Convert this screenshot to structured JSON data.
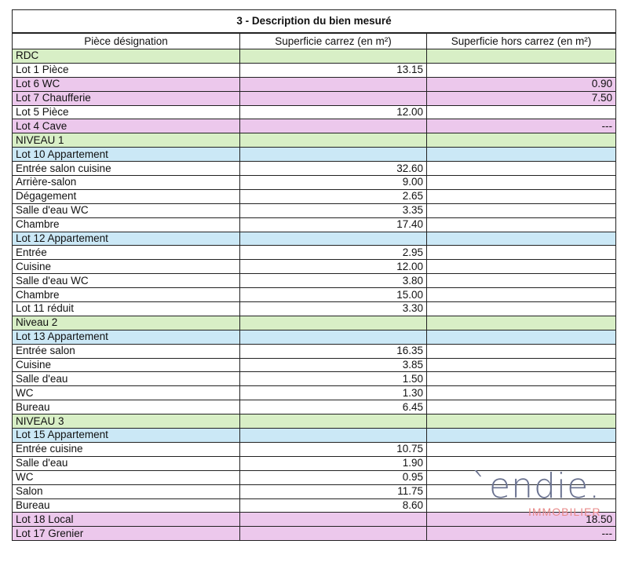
{
  "title": "3 -  Description du bien mesuré",
  "headers": [
    "Pièce désignation",
    "Superficie carrez (en m²)",
    "Superficie hors carrez (en m²)"
  ],
  "colors": {
    "level": "#d8efc6",
    "lot_blue": "#cbe8f6",
    "lot_pink": "#ecc8ec"
  },
  "rows": [
    {
      "type": "level",
      "label": "RDC",
      "carrez": "",
      "hors": ""
    },
    {
      "type": "room",
      "label": "Lot 1 Pièce",
      "carrez": "13.15",
      "hors": ""
    },
    {
      "type": "lotpink",
      "label": "Lot 6 WC",
      "carrez": "",
      "hors": "0.90"
    },
    {
      "type": "lotpink",
      "label": "Lot 7 Chaufferie",
      "carrez": "",
      "hors": "7.50"
    },
    {
      "type": "room",
      "label": "Lot 5 Pièce",
      "carrez": "12.00",
      "hors": ""
    },
    {
      "type": "lotpink",
      "label": "Lot 4 Cave",
      "carrez": "",
      "hors": "---"
    },
    {
      "type": "level",
      "label": "NIVEAU 1",
      "carrez": "",
      "hors": ""
    },
    {
      "type": "lotblue",
      "label": "Lot 10 Appartement",
      "carrez": "",
      "hors": ""
    },
    {
      "type": "room",
      "label": "Entrée salon cuisine",
      "carrez": "32.60",
      "hors": ""
    },
    {
      "type": "room",
      "label": "Arrière-salon",
      "carrez": "9.00",
      "hors": ""
    },
    {
      "type": "room",
      "label": "Dégagement",
      "carrez": "2.65",
      "hors": ""
    },
    {
      "type": "room",
      "label": "Salle d'eau WC",
      "carrez": "3.35",
      "hors": ""
    },
    {
      "type": "room",
      "label": "Chambre",
      "carrez": "17.40",
      "hors": ""
    },
    {
      "type": "lotblue",
      "label": "Lot 12 Appartement",
      "carrez": "",
      "hors": ""
    },
    {
      "type": "room",
      "label": "Entrée",
      "carrez": "2.95",
      "hors": ""
    },
    {
      "type": "room",
      "label": "Cuisine",
      "carrez": "12.00",
      "hors": ""
    },
    {
      "type": "room",
      "label": "Salle d'eau WC",
      "carrez": "3.80",
      "hors": ""
    },
    {
      "type": "room",
      "label": "Chambre",
      "carrez": "15.00",
      "hors": ""
    },
    {
      "type": "room",
      "label": "Lot 11 réduit",
      "carrez": "3.30",
      "hors": ""
    },
    {
      "type": "level",
      "label": "Niveau 2",
      "carrez": "",
      "hors": ""
    },
    {
      "type": "lotblue",
      "label": "Lot 13 Appartement",
      "carrez": "",
      "hors": ""
    },
    {
      "type": "room",
      "label": "Entrée salon",
      "carrez": "16.35",
      "hors": ""
    },
    {
      "type": "room",
      "label": "Cuisine",
      "carrez": "3.85",
      "hors": ""
    },
    {
      "type": "room",
      "label": "Salle d'eau",
      "carrez": "1.50",
      "hors": ""
    },
    {
      "type": "room",
      "label": "WC",
      "carrez": "1.30",
      "hors": ""
    },
    {
      "type": "room",
      "label": "Bureau",
      "carrez": "6.45",
      "hors": ""
    },
    {
      "type": "level",
      "label": "NIVEAU 3",
      "carrez": "",
      "hors": ""
    },
    {
      "type": "lotblue",
      "label": "Lot 15 Appartement",
      "carrez": "",
      "hors": ""
    },
    {
      "type": "room",
      "label": "Entrée cuisine",
      "carrez": "10.75",
      "hors": ""
    },
    {
      "type": "room",
      "label": "Salle d'eau",
      "carrez": "1.90",
      "hors": ""
    },
    {
      "type": "room",
      "label": "WC",
      "carrez": "0.95",
      "hors": ""
    },
    {
      "type": "room",
      "label": "Salon",
      "carrez": "11.75",
      "hors": ""
    },
    {
      "type": "room",
      "label": "Bureau",
      "carrez": "8.60",
      "hors": ""
    },
    {
      "type": "lotpink",
      "label": "Lot 18 Local",
      "carrez": "",
      "hors": "18.50"
    },
    {
      "type": "lotpink",
      "label": "Lot 17 Grenier",
      "carrez": "",
      "hors": "---"
    }
  ],
  "watermark": {
    "word": "`endie.",
    "sub": "IMMOBILIER"
  }
}
